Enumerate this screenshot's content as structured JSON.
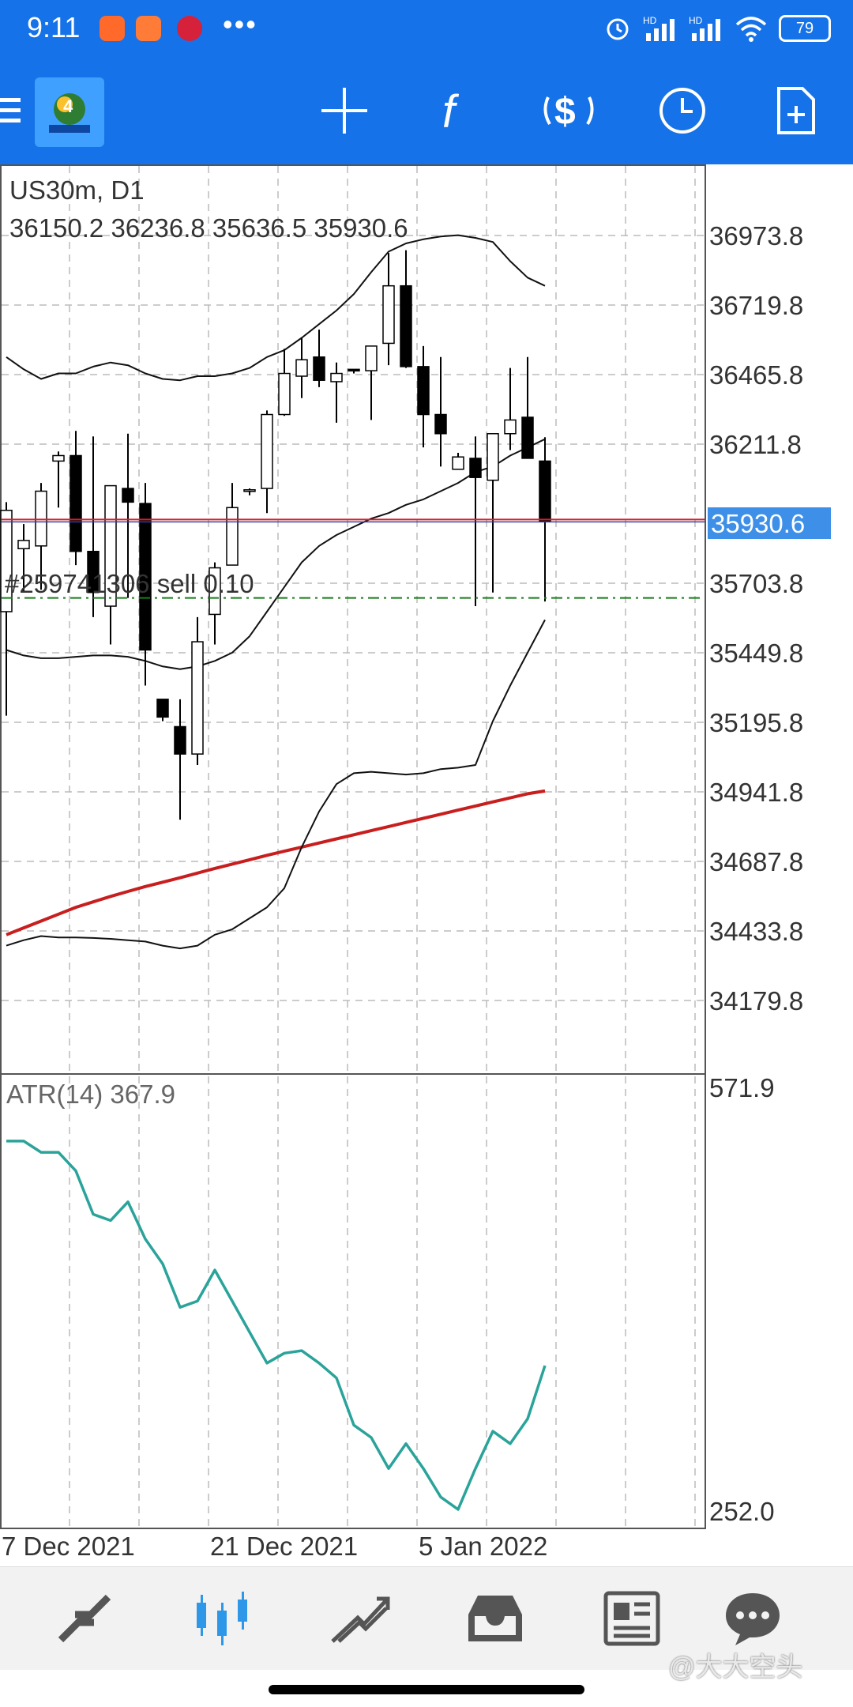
{
  "status_bar": {
    "time": "9:11",
    "battery": "79",
    "hd1": "HD",
    "hd2": "HD"
  },
  "toolbar": {
    "menu_icon": "hamburger-icon",
    "logo_icon": "metatrader-logo",
    "crosshair_icon": "crosshair-icon",
    "indicators_icon": "function-icon",
    "symbols_icon": "currency-icon",
    "period_icon": "clock-icon",
    "objects_icon": "new-document-icon"
  },
  "chart": {
    "symbol": "US30m, D1",
    "ohlc": "36150.2 36236.8 35636.5 35930.6",
    "current_price": "35930.6",
    "order_label": "#259741306  sell 0.10",
    "price_ticks": [
      "36973.8",
      "36719.8",
      "36465.8",
      "36211.8",
      "35703.8",
      "35449.8",
      "35195.8",
      "34941.8",
      "34687.8",
      "34433.8",
      "34179.8"
    ],
    "date_ticks": [
      "7 Dec 2021",
      "21 Dec 2021",
      "5 Jan 2022"
    ],
    "colors": {
      "bull": "#ffffff",
      "bear": "#000000",
      "ma200": "#c81e1e",
      "atr": "#2aa39a",
      "price_line": "#d02030",
      "order_line": "#1b7a1b",
      "price_label_bg": "#3d8fe8"
    }
  },
  "chart_data": {
    "type": "candlestick",
    "title": "US30m, D1",
    "ylim": [
      34050,
      37100
    ],
    "candles": [
      {
        "o": 35600,
        "h": 36000,
        "l": 35220,
        "c": 35970
      },
      {
        "o": 35830,
        "h": 35920,
        "l": 35670,
        "c": 35860
      },
      {
        "o": 35840,
        "h": 36070,
        "l": 35680,
        "c": 36040
      },
      {
        "o": 36150,
        "h": 36185,
        "l": 35980,
        "c": 36170
      },
      {
        "o": 36170,
        "h": 36260,
        "l": 35770,
        "c": 35820
      },
      {
        "o": 35820,
        "h": 36240,
        "l": 35580,
        "c": 35670
      },
      {
        "o": 35620,
        "h": 36055,
        "l": 35480,
        "c": 36060
      },
      {
        "o": 36050,
        "h": 36250,
        "l": 35650,
        "c": 36000
      },
      {
        "o": 35995,
        "h": 36070,
        "l": 35330,
        "c": 35460
      },
      {
        "o": 35280,
        "h": 35280,
        "l": 35200,
        "c": 35215
      },
      {
        "o": 35180,
        "h": 35280,
        "l": 34840,
        "c": 35080
      },
      {
        "o": 35080,
        "h": 35580,
        "l": 35040,
        "c": 35490
      },
      {
        "o": 35590,
        "h": 35780,
        "l": 35480,
        "c": 35760
      },
      {
        "o": 35770,
        "h": 36070,
        "l": 35770,
        "c": 35980
      },
      {
        "o": 36040,
        "h": 36050,
        "l": 36025,
        "c": 36045
      },
      {
        "o": 36050,
        "h": 36335,
        "l": 35960,
        "c": 36320
      },
      {
        "o": 36320,
        "h": 36560,
        "l": 36315,
        "c": 36470
      },
      {
        "o": 36460,
        "h": 36600,
        "l": 36380,
        "c": 36520
      },
      {
        "o": 36530,
        "h": 36630,
        "l": 36420,
        "c": 36445
      },
      {
        "o": 36440,
        "h": 36510,
        "l": 36290,
        "c": 36470
      },
      {
        "o": 36485,
        "h": 36485,
        "l": 36470,
        "c": 36480
      },
      {
        "o": 36480,
        "h": 36570,
        "l": 36300,
        "c": 36570
      },
      {
        "o": 36580,
        "h": 36910,
        "l": 36500,
        "c": 36790
      },
      {
        "o": 36790,
        "h": 36920,
        "l": 36490,
        "c": 36495
      },
      {
        "o": 36495,
        "h": 36570,
        "l": 36200,
        "c": 36320
      },
      {
        "o": 36320,
        "h": 36530,
        "l": 36130,
        "c": 36250
      },
      {
        "o": 36120,
        "h": 36180,
        "l": 36120,
        "c": 36165
      },
      {
        "o": 36160,
        "h": 36240,
        "l": 35620,
        "c": 36090
      },
      {
        "o": 36080,
        "h": 36250,
        "l": 35670,
        "c": 36250
      },
      {
        "o": 36250,
        "h": 36490,
        "l": 36190,
        "c": 36300
      },
      {
        "o": 36310,
        "h": 36530,
        "l": 36160,
        "c": 36160
      },
      {
        "o": 36150,
        "h": 36237,
        "l": 35637,
        "c": 35931
      }
    ],
    "bollinger_upper": [
      36530,
      36485,
      36450,
      36470,
      36470,
      36495,
      36510,
      36500,
      36470,
      36450,
      36445,
      36460,
      36460,
      36470,
      36490,
      36530,
      36555,
      36600,
      36650,
      36700,
      36760,
      36840,
      36915,
      36945,
      36960,
      36970,
      36975,
      36965,
      36950,
      36880,
      36820,
      36790
    ],
    "bollinger_middle": [
      35460,
      35440,
      35430,
      35430,
      35435,
      35440,
      35440,
      35435,
      35420,
      35400,
      35390,
      35400,
      35420,
      35450,
      35510,
      35600,
      35690,
      35780,
      35840,
      35880,
      35910,
      35940,
      35960,
      35990,
      36010,
      36040,
      36070,
      36110,
      36130,
      36170,
      36200,
      36230
    ],
    "bollinger_lower": [
      34380,
      34400,
      34415,
      34410,
      34410,
      34408,
      34405,
      34400,
      34395,
      34380,
      34370,
      34380,
      34420,
      34440,
      34480,
      34520,
      34590,
      34740,
      34870,
      34970,
      35010,
      35015,
      35010,
      35005,
      35010,
      35025,
      35030,
      35040,
      35200,
      35330,
      35450,
      35570
    ],
    "ma200": [
      34420,
      34445,
      34470,
      34495,
      34520,
      34540,
      34560,
      34578,
      34596,
      34612,
      34628,
      34645,
      34662,
      34678,
      34694,
      34710,
      34725,
      34740,
      34755,
      34770,
      34785,
      34800,
      34815,
      34830,
      34845,
      34860,
      34875,
      34890,
      34905,
      34920,
      34935,
      34945
    ],
    "current_price": 35930.6,
    "order_price": 35650
  },
  "atr": {
    "label": "ATR(14) 367.9",
    "max_label": "571.9",
    "min_label": "252.0",
    "range": [
      252.0,
      571.9
    ],
    "values": [
      549,
      549,
      540,
      540,
      525,
      490,
      485,
      500,
      470,
      450,
      415,
      420,
      445,
      420,
      395,
      370,
      378,
      380,
      370,
      358,
      320,
      310,
      285,
      305,
      285,
      262,
      252,
      285,
      315,
      305,
      325,
      368
    ]
  },
  "bottom_nav": {
    "items": [
      {
        "name": "quotes-icon"
      },
      {
        "name": "chart-icon",
        "active": true
      },
      {
        "name": "trade-icon"
      },
      {
        "name": "history-icon"
      },
      {
        "name": "news-icon"
      },
      {
        "name": "chat-icon"
      }
    ]
  },
  "watermark": "@大大空头"
}
